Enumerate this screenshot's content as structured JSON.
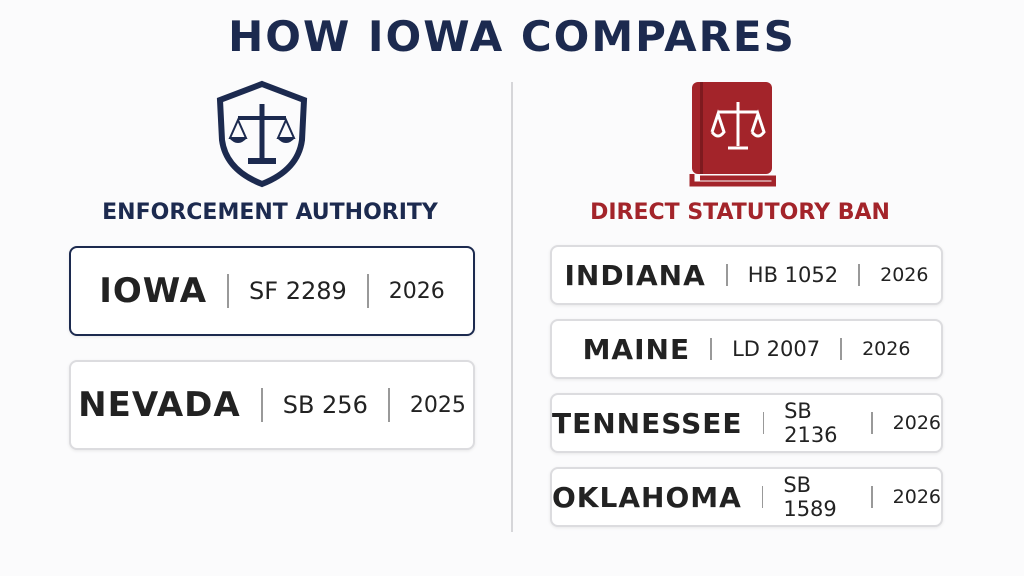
{
  "header": {
    "title": "HOW IOWA COMPARES"
  },
  "left": {
    "heading": "ENFORCEMENT AUTHORITY",
    "rows": [
      {
        "state": "IOWA",
        "bill": "SF 2289",
        "year": "2026"
      },
      {
        "state": "NEVADA",
        "bill": "SB 256",
        "year": "2025"
      }
    ]
  },
  "right": {
    "heading": "DIRECT STATUTORY BAN",
    "rows": [
      {
        "state": "INDIANA",
        "bill": "HB 1052",
        "year": "2026"
      },
      {
        "state": "MAINE",
        "bill": "LD 2007",
        "year": "2026"
      },
      {
        "state": "TENNESSEE",
        "bill": "SB 2136",
        "year": "2026"
      },
      {
        "state": "OKLAHOMA",
        "bill": "SB 1589",
        "year": "2026"
      }
    ]
  }
}
